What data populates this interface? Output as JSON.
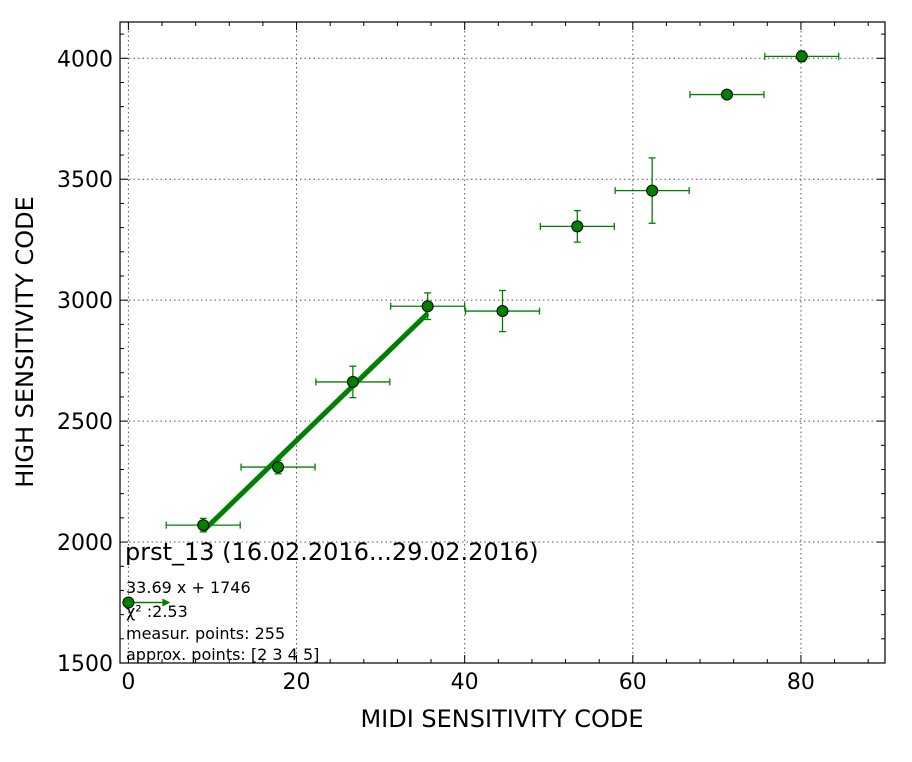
{
  "chart_data": {
    "type": "scatter",
    "xlabel": "MIDI SENSITIVITY CODE",
    "ylabel": "HIGH SENSITIVITY CODE",
    "xlim": [
      -1,
      90
    ],
    "ylim": [
      1500,
      4150
    ],
    "x_ticks": [
      0,
      20,
      40,
      60,
      80
    ],
    "y_ticks": [
      1500,
      2000,
      2500,
      3000,
      3500,
      4000
    ],
    "x_tick_labels": [
      "0",
      "20",
      "40",
      "60",
      "80"
    ],
    "y_tick_labels": [
      "1500",
      "2000",
      "2500",
      "3000",
      "3500",
      "4000"
    ],
    "grid": true,
    "colors": {
      "series": "#008000",
      "fit": "#008000"
    },
    "series": [
      {
        "points": [
          {
            "x": 8.9,
            "y": 2070,
            "xerr": 4.4,
            "yerr": 28
          },
          {
            "x": 17.8,
            "y": 2310,
            "xerr": 4.4,
            "yerr": 28
          },
          {
            "x": 26.7,
            "y": 2662,
            "xerr": 4.4,
            "yerr": 65
          },
          {
            "x": 35.6,
            "y": 2975,
            "xerr": 4.4,
            "yerr": 55
          },
          {
            "x": 44.5,
            "y": 2955,
            "xerr": 4.4,
            "yerr": 85
          },
          {
            "x": 53.4,
            "y": 3305,
            "xerr": 4.4,
            "yerr": 65
          },
          {
            "x": 62.3,
            "y": 3453,
            "xerr": 4.4,
            "yerr": 135
          },
          {
            "x": 71.2,
            "y": 3850,
            "xerr": 4.4,
            "yerr": 0
          },
          {
            "x": 80.1,
            "y": 4008,
            "xerr": 4.4,
            "yerr": 22
          }
        ]
      }
    ],
    "fit": {
      "label": "33.69 x + 1746",
      "slope": 33.69,
      "intercept": 1746,
      "x_range": [
        8.9,
        35.6
      ]
    },
    "annotation": {
      "title": "prst_13 (16.02.2016...29.02.2016)",
      "chi2": "χ² :2.53",
      "measur_points": "measur. points: 255",
      "approx_points": "approx. points: [2 3 4 5]",
      "marker_point": {
        "x": 0,
        "y": 1750
      }
    }
  }
}
